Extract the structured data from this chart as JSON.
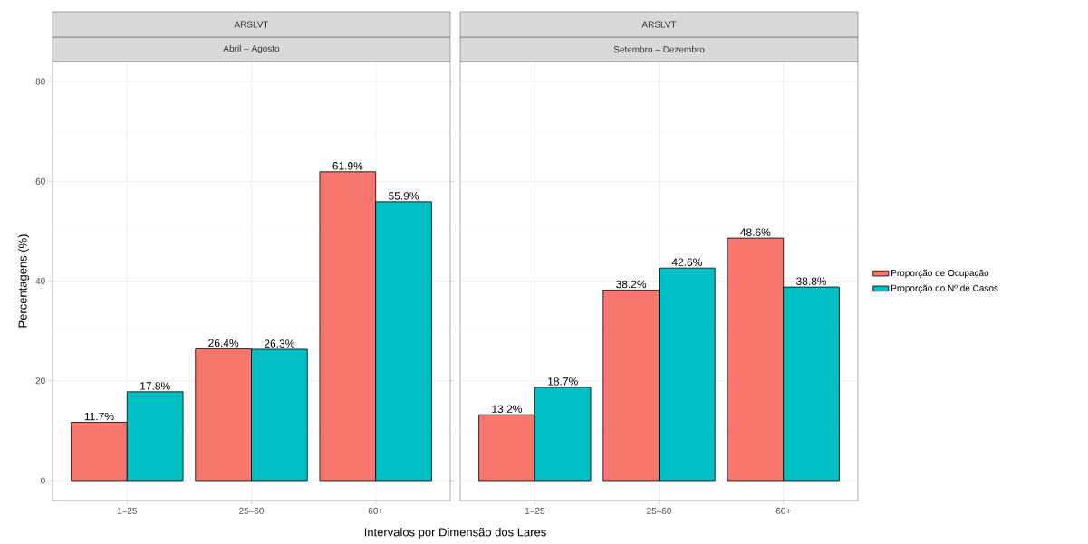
{
  "chart_data": [
    {
      "type": "bar",
      "title": "ARSLVT",
      "subtitle": "Abril – Agosto",
      "xlabel": "Intervalos por Dimensão dos Lares",
      "ylabel": "Percentagens (%)",
      "categories": [
        "1–25",
        "25–60",
        "60+"
      ],
      "series": [
        {
          "color": "#f8766d",
          "values": [
            11.7,
            26.4,
            61.9
          ],
          "value_labels": [
            "11.7%",
            "26.4%",
            "61.9%"
          ]
        },
        {
          "color": "#00bfc4",
          "values": [
            17.8,
            26.3,
            55.9
          ],
          "value_labels": [
            "17.8%",
            "26.3%",
            "55.9%"
          ]
        }
      ],
      "ylim": [
        -4,
        84
      ],
      "yticks": [
        0,
        20,
        40,
        60,
        80
      ],
      "grid": true
    },
    {
      "type": "bar",
      "title": "ARSLVT",
      "subtitle": "Setembro – Dezembro",
      "categories": [
        "1–25",
        "25–60",
        "60+"
      ],
      "series": [
        {
          "name": "Proporção de Ocupação",
          "color": "#f8766d",
          "values": [
            13.2,
            38.2,
            48.6
          ],
          "value_labels": [
            "13.2%",
            "38.2%",
            "48.6%"
          ]
        },
        {
          "name": "Proporção do Nº de Casos",
          "color": "#00bfc4",
          "values": [
            18.7,
            42.6,
            38.8
          ],
          "value_labels": [
            "18.7%",
            "42.6%",
            "38.8%"
          ]
        }
      ],
      "ylim": [
        -4,
        84
      ],
      "yticks": [
        0,
        20,
        40,
        60,
        80
      ],
      "grid": true,
      "legend": "right",
      "tick_labels": "x"
    }
  ]
}
